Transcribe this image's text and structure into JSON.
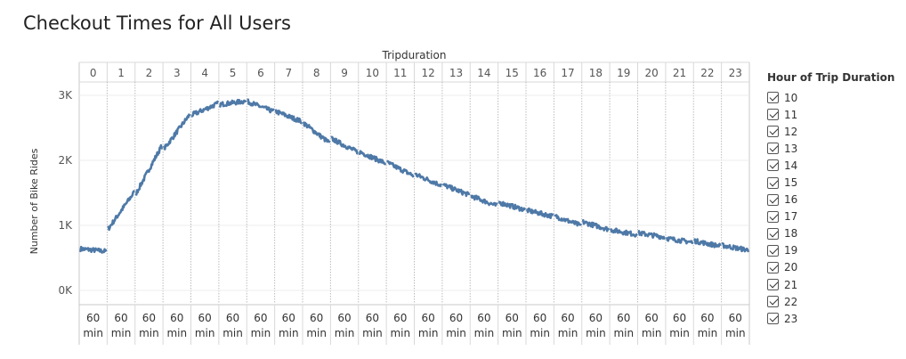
{
  "title": "Checkout Times for All Users",
  "chart_data": {
    "type": "line",
    "title": "Checkout Times for All Users",
    "column_header": "Tripduration",
    "ylabel": "Number of Bike Rides",
    "ylim": [
      0,
      3200
    ],
    "y_ticks": [
      {
        "value": 0,
        "label": "0K"
      },
      {
        "value": 1000,
        "label": "1K"
      },
      {
        "value": 2000,
        "label": "2K"
      },
      {
        "value": 3000,
        "label": "3K"
      }
    ],
    "bottom_label_line1": "60",
    "bottom_label_line2": "min",
    "color": "#4e79a7",
    "panels": [
      {
        "hour": "0",
        "start": 640,
        "end": 600
      },
      {
        "hour": "1",
        "start": 950,
        "end": 1500
      },
      {
        "hour": "2",
        "start": 1500,
        "end": 2220
      },
      {
        "hour": "3",
        "start": 2180,
        "end": 2700
      },
      {
        "hour": "4",
        "start": 2700,
        "end": 2870
      },
      {
        "hour": "5",
        "start": 2860,
        "end": 2910
      },
      {
        "hour": "6",
        "start": 2900,
        "end": 2750
      },
      {
        "hour": "7",
        "start": 2750,
        "end": 2600
      },
      {
        "hour": "8",
        "start": 2570,
        "end": 2270
      },
      {
        "hour": "9",
        "start": 2330,
        "end": 2130
      },
      {
        "hour": "10",
        "start": 2130,
        "end": 1960
      },
      {
        "hour": "11",
        "start": 1960,
        "end": 1770
      },
      {
        "hour": "12",
        "start": 1780,
        "end": 1620
      },
      {
        "hour": "13",
        "start": 1620,
        "end": 1470
      },
      {
        "hour": "14",
        "start": 1450,
        "end": 1300
      },
      {
        "hour": "15",
        "start": 1350,
        "end": 1240
      },
      {
        "hour": "16",
        "start": 1230,
        "end": 1140
      },
      {
        "hour": "17",
        "start": 1140,
        "end": 1000
      },
      {
        "hour": "18",
        "start": 1050,
        "end": 940
      },
      {
        "hour": "19",
        "start": 930,
        "end": 860
      },
      {
        "hour": "20",
        "start": 880,
        "end": 820
      },
      {
        "hour": "21",
        "start": 800,
        "end": 740
      },
      {
        "hour": "22",
        "start": 760,
        "end": 680
      },
      {
        "hour": "23",
        "start": 690,
        "end": 620
      }
    ]
  },
  "legend": {
    "title": "Hour of Trip Duration",
    "items": [
      "10",
      "11",
      "12",
      "13",
      "14",
      "15",
      "16",
      "17",
      "18",
      "19",
      "20",
      "21",
      "22",
      "23"
    ]
  }
}
